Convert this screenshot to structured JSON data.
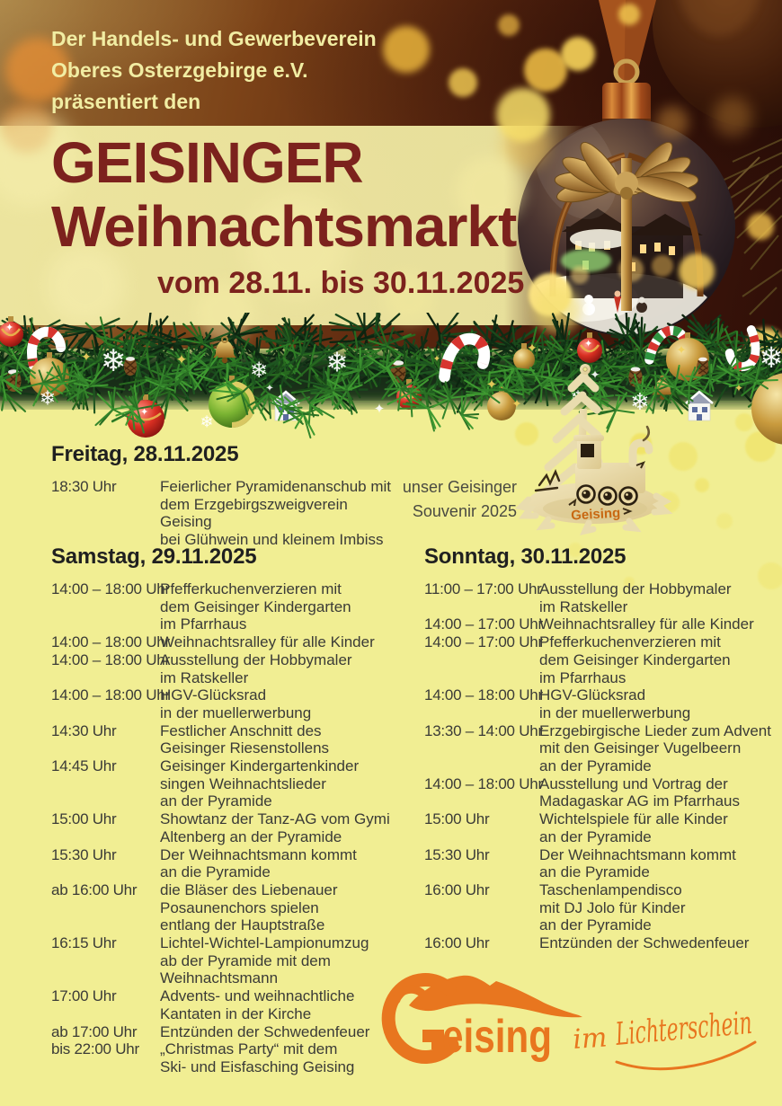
{
  "header": {
    "association_lines": [
      "Der Handels- und Gewerbeverein",
      "Oberes Osterzgebirge e.V.",
      "präsentiert den"
    ],
    "title_line1": "GEISINGER",
    "title_line2": "Weihnachtsmarkt",
    "date_range": "vom 28.11. bis 30.11.2025"
  },
  "souvenir": {
    "caption_line1": "unser Geisinger",
    "caption_line2": "Souvenir 2025",
    "item_label": "Geising"
  },
  "days": [
    {
      "title": "Freitag, 28.11.2025",
      "events": [
        {
          "time": "18:30 Uhr",
          "lines": [
            "Feierlicher Pyramidenanschub mit",
            "dem Erzgebirgszweigverein Geising",
            "bei Glühwein und kleinem Imbiss"
          ]
        }
      ]
    },
    {
      "title": "Samstag, 29.11.2025",
      "events": [
        {
          "time": "14:00 – 18:00 Uhr",
          "lines": [
            "Pfefferkuchenverzieren mit",
            "dem Geisinger Kindergarten",
            "im Pfarrhaus"
          ]
        },
        {
          "time": "14:00 – 18:00 Uhr",
          "lines": [
            "Weihnachtsralley für alle Kinder"
          ]
        },
        {
          "time": "14:00 – 18:00 Uhr",
          "lines": [
            "Ausstellung der Hobbymaler",
            "im Ratskeller"
          ]
        },
        {
          "time": "14:00 – 18:00 Uhr",
          "lines": [
            "HGV-Glücksrad",
            "in der muellerwerbung"
          ]
        },
        {
          "time": "14:30 Uhr",
          "lines": [
            "Festlicher Anschnitt des",
            "Geisinger Riesenstollens"
          ]
        },
        {
          "time": "14:45 Uhr",
          "lines": [
            "Geisinger Kindergartenkinder",
            "singen Weihnachtslieder",
            "an der Pyramide"
          ]
        },
        {
          "time": "15:00 Uhr",
          "lines": [
            "Showtanz der Tanz-AG vom Gymi",
            "Altenberg an der Pyramide"
          ]
        },
        {
          "time": "15:30 Uhr",
          "lines": [
            "Der Weihnachtsmann kommt",
            "an die Pyramide"
          ]
        },
        {
          "time": "ab 16:00 Uhr",
          "lines": [
            "die Bläser des Liebenauer",
            "Posaunenchors spielen",
            "entlang der Hauptstraße"
          ]
        },
        {
          "time": "16:15 Uhr",
          "lines": [
            "Lichtel-Wichtel-Lampionumzug",
            "ab der Pyramide mit dem",
            "Weihnachtsmann"
          ]
        },
        {
          "time": "17:00 Uhr",
          "lines": [
            "Advents- und weihnachtliche",
            "Kantaten in der Kirche"
          ]
        },
        {
          "time": "ab 17:00 Uhr",
          "lines": [
            "Entzünden der Schwedenfeuer"
          ]
        },
        {
          "time": "bis 22:00 Uhr",
          "lines": [
            "„Christmas Party“ mit dem",
            "Ski- und Eisfasching Geising"
          ]
        }
      ]
    },
    {
      "title": "Sonntag, 30.11.2025",
      "events": [
        {
          "time": "11:00 – 17:00 Uhr",
          "lines": [
            "Ausstellung der Hobbymaler",
            "im Ratskeller"
          ]
        },
        {
          "time": "14:00 – 17:00 Uhr",
          "lines": [
            "Weihnachtsralley für alle Kinder"
          ]
        },
        {
          "time": "14:00 – 17:00 Uhr",
          "lines": [
            "Pfefferkuchenverzieren mit",
            "dem Geisinger Kindergarten",
            "im Pfarrhaus"
          ]
        },
        {
          "time": "14:00 – 18:00 Uhr",
          "lines": [
            "HGV-Glücksrad",
            "in der muellerwerbung"
          ]
        },
        {
          "time": "13:30 – 14:00 Uhr",
          "lines": [
            "Erzgebirgische Lieder zum Advent",
            "mit den Geisinger Vugelbeern",
            "an der Pyramide"
          ]
        },
        {
          "time": "14:00 – 18:00 Uhr",
          "lines": [
            "Ausstellung und Vortrag der",
            "Madagaskar AG im Pfarrhaus"
          ]
        },
        {
          "time": "15:00 Uhr",
          "lines": [
            "Wichtelspiele für alle Kinder",
            "an der Pyramide"
          ]
        },
        {
          "time": "15:30 Uhr",
          "lines": [
            "Der Weihnachtsmann kommt",
            "an die Pyramide"
          ]
        },
        {
          "time": "16:00 Uhr",
          "lines": [
            "Taschenlampendisco",
            "mit DJ Jolo für Kinder",
            "an der Pyramide"
          ]
        },
        {
          "time": "16:00 Uhr",
          "lines": [
            "Entzünden der Schwedenfeuer"
          ]
        }
      ]
    }
  ],
  "logo": {
    "name_initial": "G",
    "name_rest": "eising",
    "tagline_word1": "im",
    "tagline_word2": "Lichterschein"
  },
  "icons": {
    "snowflake": "❄",
    "sparkle": "✦"
  },
  "colors": {
    "title_maroon": "#7c221d",
    "body_background": "#f1ee93",
    "heading_text": "#202020",
    "body_text": "#3b3b37",
    "presenter_text": "#f1eda3",
    "logo_orange": "#e8761f"
  }
}
